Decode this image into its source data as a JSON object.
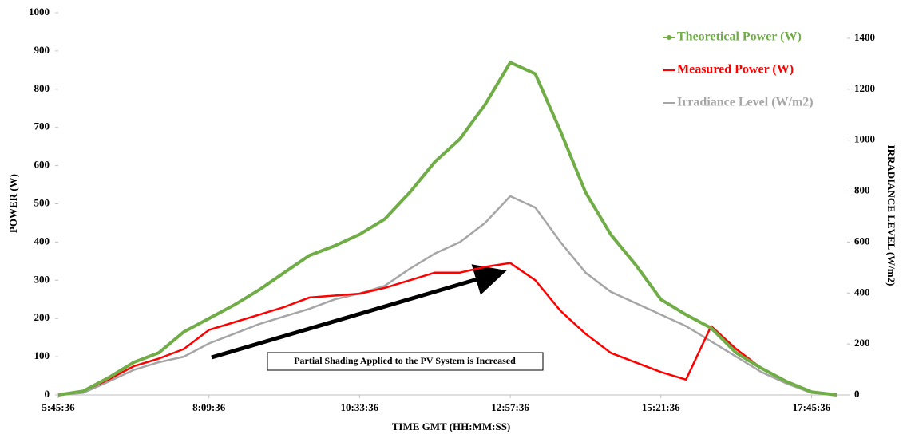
{
  "chart_data": {
    "type": "line",
    "x": [
      "5:45:36",
      "6:09:36",
      "6:33:36",
      "6:57:36",
      "7:21:36",
      "7:45:36",
      "8:09:36",
      "8:33:36",
      "8:57:36",
      "9:21:36",
      "9:45:36",
      "10:09:36",
      "10:33:36",
      "10:57:36",
      "11:21:36",
      "11:45:36",
      "12:09:36",
      "12:33:36",
      "12:57:36",
      "13:21:36",
      "13:45:36",
      "14:09:36",
      "14:33:36",
      "14:57:36",
      "15:21:36",
      "15:45:36",
      "16:09:36",
      "16:33:36",
      "16:57:36",
      "17:21:36",
      "17:45:36",
      "18:09:36"
    ],
    "series": [
      {
        "name": "Theoretical Power (W)",
        "color": "#70ad47",
        "marker": "circle",
        "values": [
          0,
          10,
          45,
          85,
          110,
          165,
          200,
          235,
          275,
          320,
          365,
          390,
          420,
          460,
          530,
          610,
          670,
          760,
          870,
          840,
          690,
          530,
          420,
          340,
          250,
          210,
          175,
          110,
          70,
          35,
          8,
          0
        ]
      },
      {
        "name": "Measured Power (W)",
        "color": "#ff0000",
        "values": [
          0,
          10,
          40,
          75,
          95,
          120,
          170,
          190,
          210,
          230,
          255,
          260,
          265,
          280,
          300,
          320,
          320,
          335,
          345,
          300,
          220,
          160,
          110,
          85,
          60,
          40,
          180,
          120,
          70,
          35,
          8,
          0
        ]
      },
      {
        "name": "Irradiance Level (W/m2)",
        "color": "#a6a6a6",
        "axis": "y2",
        "values": [
          0,
          8,
          52,
          98,
          128,
          150,
          202,
          240,
          278,
          308,
          338,
          375,
          398,
          428,
          495,
          555,
          600,
          675,
          780,
          735,
          600,
          480,
          405,
          360,
          315,
          270,
          210,
          150,
          90,
          45,
          8,
          0
        ]
      }
    ],
    "xlim": [
      "5:45:36",
      "18:19:36"
    ],
    "xticks": [
      "5:45:36",
      "8:09:36",
      "10:33:36",
      "12:57:36",
      "15:21:36",
      "17:45:36"
    ],
    "ylim": [
      0,
      1000
    ],
    "yticks": [
      0,
      100,
      200,
      300,
      400,
      500,
      600,
      700,
      800,
      900,
      1000
    ],
    "y2lim": [
      0,
      1500
    ],
    "y2ticks": [
      0,
      200,
      400,
      600,
      800,
      1000,
      1200,
      1400
    ],
    "x_label": "TIME GMT (HH:MM:SS)",
    "y_label": "POWER (W)",
    "y2_label": "IRRADIANCE LEVEL (W/m2)",
    "annotation": "Partial Shading Applied to the PV System is Increased",
    "legend": "upper right",
    "grid": false
  }
}
